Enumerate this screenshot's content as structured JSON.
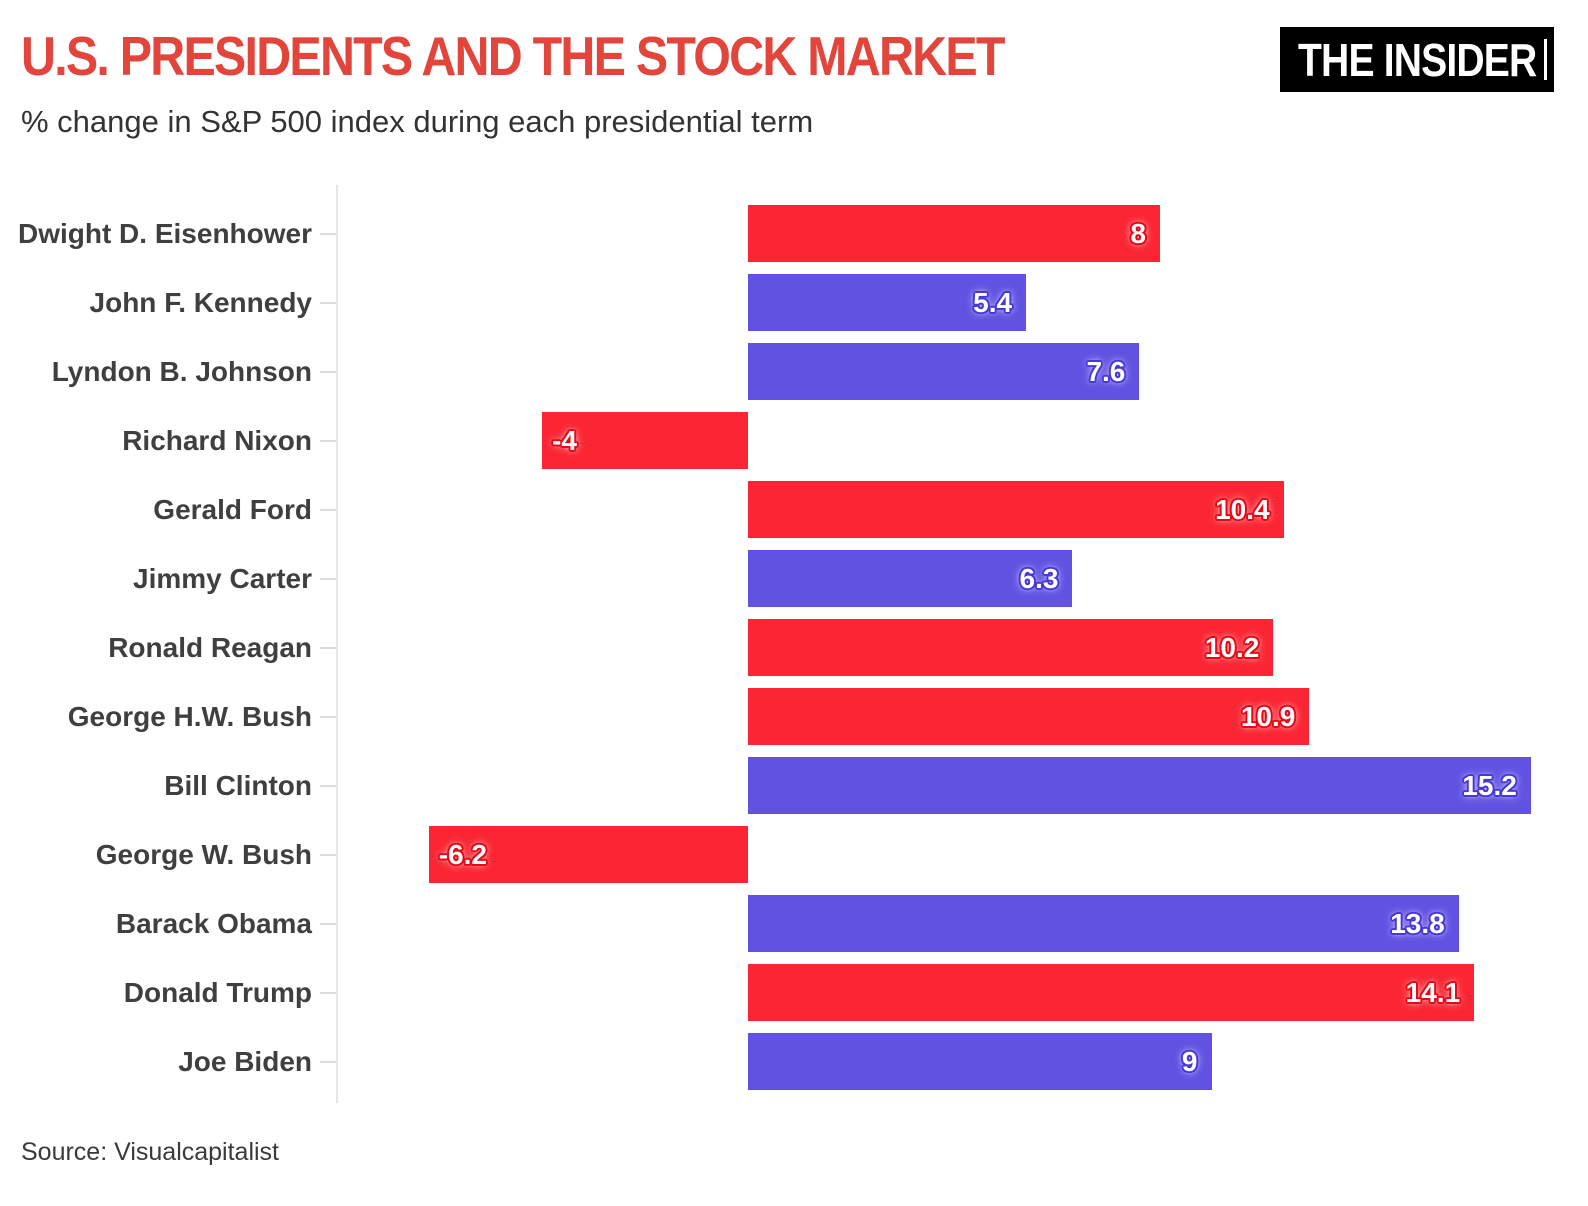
{
  "header": {
    "title": "U.S. PRESIDENTS AND THE STOCK MARKET",
    "subtitle": "% change in S&P 500 index during each presidential term",
    "logo_text": "THE INSIDER"
  },
  "footer": {
    "source": "Source: Visualcapitalist"
  },
  "colors": {
    "title": "#e2453c",
    "subtitle": "#333333",
    "category_label": "#3f3f3f",
    "axis": "#e7e7e7",
    "tick": "#dcdcdc",
    "source": "#3a3a3a",
    "logo_bg": "#000000",
    "logo_text": "#ffffff",
    "republican": "#fb2533",
    "democrat": "#6152e2",
    "republican_halo": "#e60814",
    "democrat_halo": "#4737d8"
  },
  "chart_data": {
    "type": "bar",
    "orientation": "horizontal",
    "title": "U.S. PRESIDENTS AND THE STOCK MARKET",
    "subtitle": "% change in S&P 500 index during each presidential term",
    "xlabel": "",
    "ylabel": "",
    "xlim": [
      -8,
      16.3
    ],
    "grid": false,
    "legend": "none (bar color encodes party: red = Republican, blue = Democrat)",
    "value_unit": "% change in S&P 500 per year of term",
    "categories": [
      "Dwight D. Eisenhower",
      "John F. Kennedy",
      "Lyndon B. Johnson",
      "Richard Nixon",
      "Gerald Ford",
      "Jimmy Carter",
      "Ronald Reagan",
      "George H.W. Bush",
      "Bill Clinton",
      "George W. Bush",
      "Barack Obama",
      "Donald Trump",
      "Joe Biden"
    ],
    "values": [
      8,
      5.4,
      7.6,
      -4,
      10.4,
      6.3,
      10.2,
      10.9,
      15.2,
      -6.2,
      13.8,
      14.1,
      9
    ],
    "presidents": [
      {
        "name": "Dwight D. Eisenhower",
        "value": 8,
        "display": "8",
        "party": "republican"
      },
      {
        "name": "John F. Kennedy",
        "value": 5.4,
        "display": "5.4",
        "party": "democrat"
      },
      {
        "name": "Lyndon B. Johnson",
        "value": 7.6,
        "display": "7.6",
        "party": "democrat"
      },
      {
        "name": "Richard Nixon",
        "value": -4,
        "display": "-4",
        "party": "republican"
      },
      {
        "name": "Gerald Ford",
        "value": 10.4,
        "display": "10.4",
        "party": "republican"
      },
      {
        "name": "Jimmy Carter",
        "value": 6.3,
        "display": "6.3",
        "party": "democrat"
      },
      {
        "name": "Ronald Reagan",
        "value": 10.2,
        "display": "10.2",
        "party": "republican"
      },
      {
        "name": "George H.W. Bush",
        "value": 10.9,
        "display": "10.9",
        "party": "republican"
      },
      {
        "name": "Bill Clinton",
        "value": 15.2,
        "display": "15.2",
        "party": "democrat"
      },
      {
        "name": "George W. Bush",
        "value": -6.2,
        "display": "-6.2",
        "party": "republican"
      },
      {
        "name": "Barack Obama",
        "value": 13.8,
        "display": "13.8",
        "party": "democrat"
      },
      {
        "name": "Donald Trump",
        "value": 14.1,
        "display": "14.1",
        "party": "republican"
      },
      {
        "name": "Joe Biden",
        "value": 9,
        "display": "9",
        "party": "democrat"
      }
    ]
  }
}
